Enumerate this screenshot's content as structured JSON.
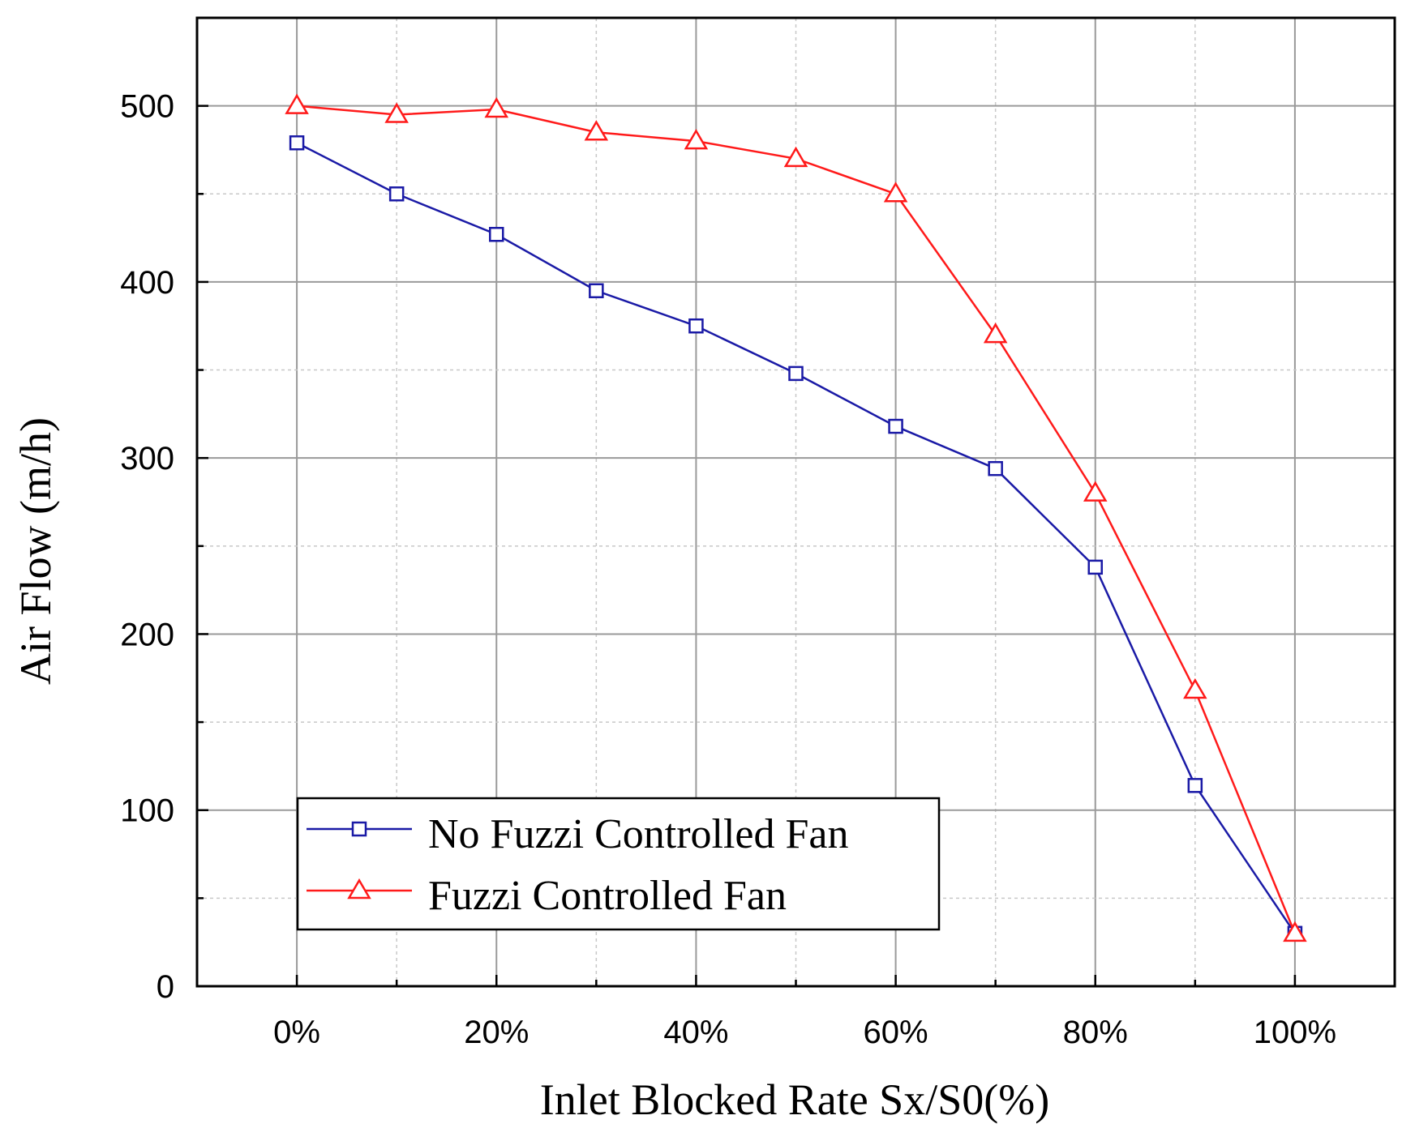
{
  "chart_data": {
    "type": "line",
    "title": "",
    "xlabel": "Inlet Blocked Rate Sx/S0(%)",
    "ylabel": "Air Flow (m/h)",
    "x": [
      0,
      10,
      20,
      30,
      40,
      50,
      60,
      70,
      80,
      90,
      100
    ],
    "xlim": [
      -10,
      110
    ],
    "ylim": [
      0,
      550
    ],
    "x_ticks": [
      0,
      20,
      40,
      60,
      80,
      100
    ],
    "x_tick_labels": [
      "0%",
      "20%",
      "40%",
      "60%",
      "80%",
      "100%"
    ],
    "y_ticks": [
      0,
      100,
      200,
      300,
      400,
      500
    ],
    "y_tick_labels": [
      "0",
      "100",
      "200",
      "300",
      "400",
      "500"
    ],
    "grid": true,
    "legend_position": "bottom-left",
    "series": [
      {
        "name": "No Fuzzi Controlled Fan",
        "marker": "square",
        "color": "#1a1aa6",
        "values": [
          479,
          450,
          427,
          395,
          375,
          348,
          318,
          294,
          238,
          114,
          30
        ]
      },
      {
        "name": "Fuzzi Controlled Fan",
        "marker": "triangle",
        "color": "#ff1a1a",
        "values": [
          500,
          495,
          498,
          485,
          480,
          470,
          450,
          370,
          280,
          168,
          30
        ]
      }
    ]
  }
}
